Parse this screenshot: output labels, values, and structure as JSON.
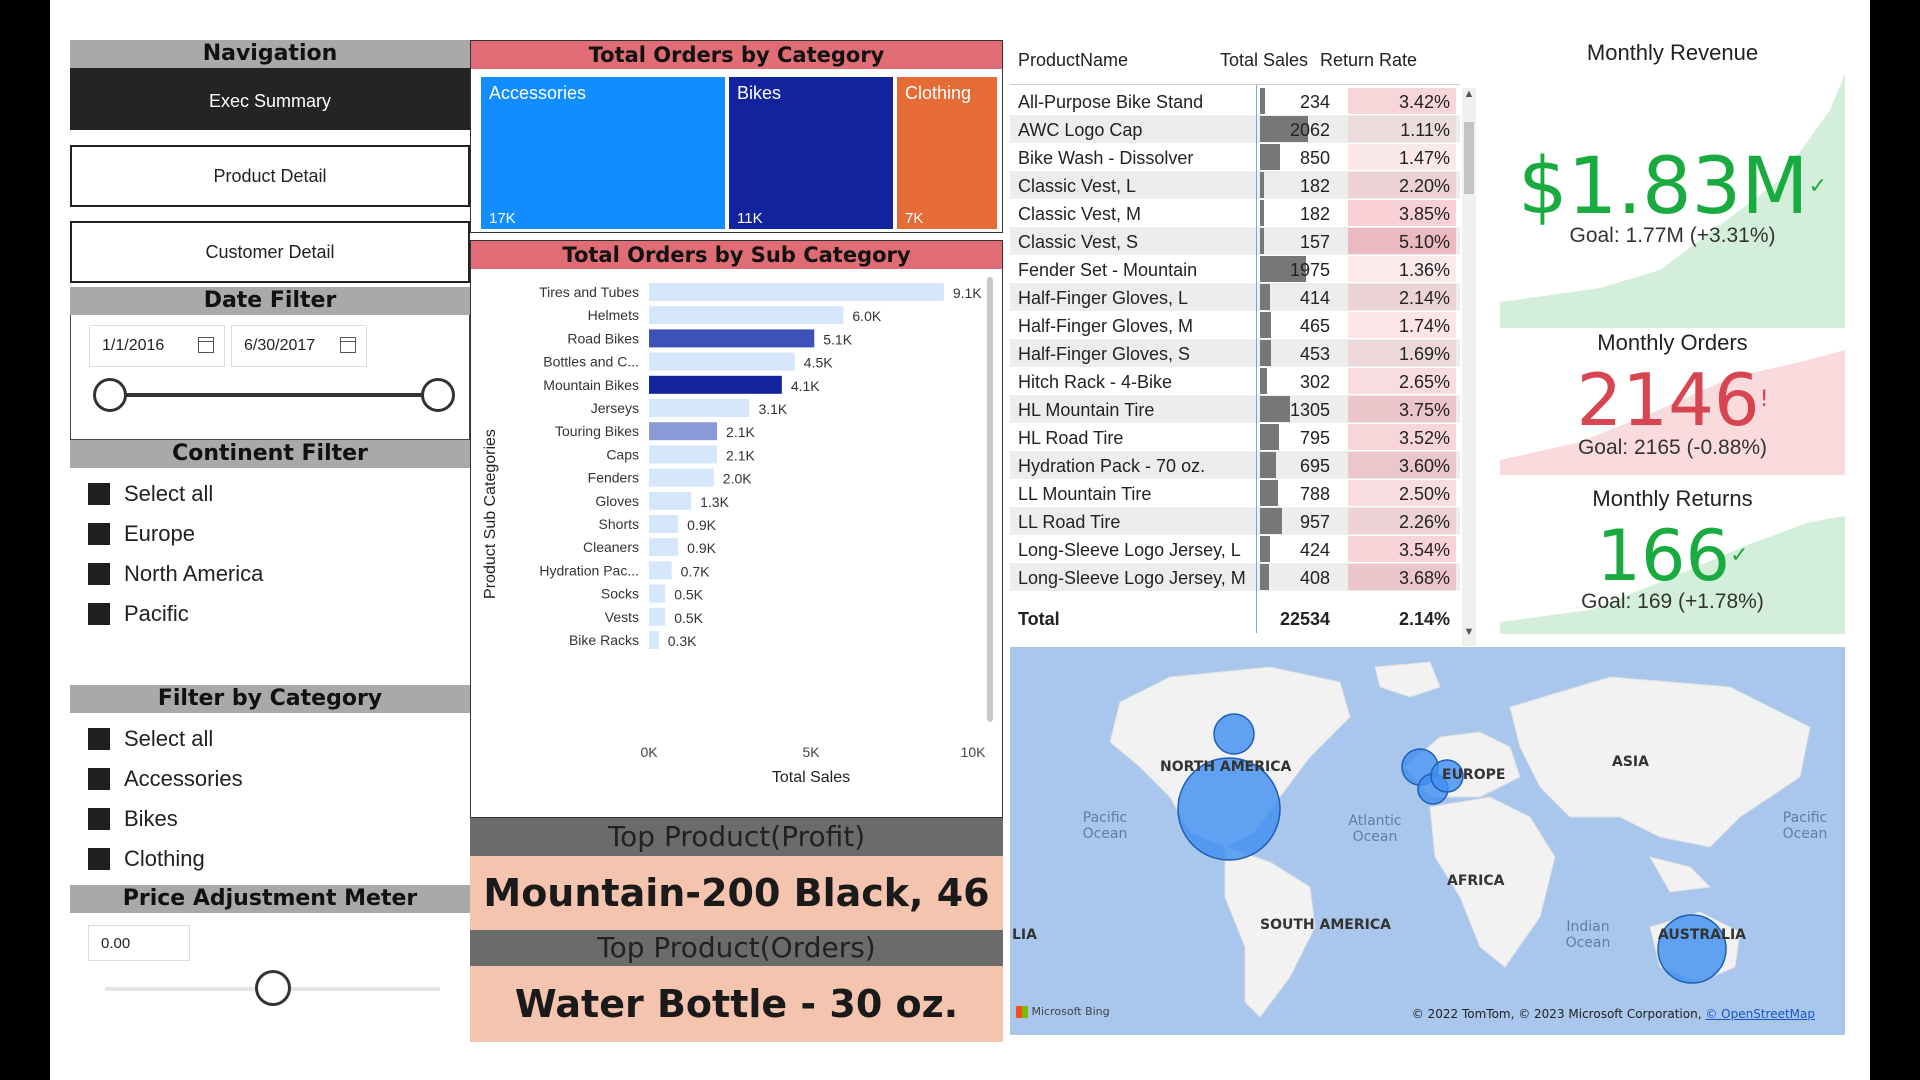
{
  "navigation": {
    "title": "Navigation",
    "buttons": [
      {
        "label": "Exec Summary"
      },
      {
        "label": "Product Detail"
      },
      {
        "label": "Customer Detail"
      }
    ]
  },
  "date_filter": {
    "title": "Date Filter",
    "start": "1/1/2016",
    "end": "6/30/2017"
  },
  "continent_filter": {
    "title": "Continent Filter",
    "items": [
      "Select all",
      "Europe",
      "North America",
      "Pacific"
    ]
  },
  "category_filter": {
    "title": "Filter by Category",
    "items": [
      "Select all",
      "Accessories",
      "Bikes",
      "Clothing"
    ]
  },
  "price_meter": {
    "title": "Price Adjustment Meter",
    "value": "0.00",
    "slider_position": 0.5
  },
  "treemap": {
    "title": "Total Orders by Category",
    "items": [
      {
        "label": "Accessories",
        "value": "17K",
        "color": "#118dff"
      },
      {
        "label": "Bikes",
        "value": "11K",
        "color": "#12239e"
      },
      {
        "label": "Clothing",
        "value": "7K",
        "color": "#e66c37"
      }
    ]
  },
  "chart_data": {
    "type": "bar",
    "orientation": "horizontal",
    "title": "Total Orders by Sub Category",
    "xlabel": "Total Sales",
    "ylabel": "Product Sub Categories",
    "xlim": [
      0,
      10000
    ],
    "xticks": [
      "0K",
      "5K",
      "10K"
    ],
    "categories": [
      "Tires and Tubes",
      "Helmets",
      "Road Bikes",
      "Bottles and C...",
      "Mountain Bikes",
      "Jerseys",
      "Touring Bikes",
      "Caps",
      "Fenders",
      "Gloves",
      "Shorts",
      "Cleaners",
      "Hydration Pac...",
      "Socks",
      "Vests",
      "Bike Racks"
    ],
    "values": [
      9100,
      6000,
      5100,
      4500,
      4100,
      3100,
      2100,
      2100,
      2000,
      1300,
      900,
      900,
      700,
      500,
      500,
      300
    ],
    "labels": [
      "9.1K",
      "6.0K",
      "5.1K",
      "4.5K",
      "4.1K",
      "3.1K",
      "2.1K",
      "2.1K",
      "2.0K",
      "1.3K",
      "0.9K",
      "0.9K",
      "0.7K",
      "0.5K",
      "0.5K",
      "0.3K"
    ],
    "colors": [
      "#d6e6fb",
      "#d6e6fb",
      "#3d52b8",
      "#d6e6fb",
      "#12239e",
      "#d6e6fb",
      "#8a9ad6",
      "#d6e6fb",
      "#d6e6fb",
      "#d6e6fb",
      "#d6e6fb",
      "#d6e6fb",
      "#d6e6fb",
      "#d6e6fb",
      "#d6e6fb",
      "#d6e6fb"
    ]
  },
  "top_profit": {
    "banner": "Top Product(Profit)",
    "value": "Mountain-200 Black, 46"
  },
  "top_orders": {
    "banner": "Top Product(Orders)",
    "value": "Water Bottle - 30 oz."
  },
  "table": {
    "columns": [
      "ProductName",
      "Total Sales",
      "Return Rate"
    ],
    "rows": [
      {
        "name": "All-Purpose Bike Stand",
        "sales": "234",
        "sales_num": 234,
        "rate": "3.42%",
        "rate_num": 3.42
      },
      {
        "name": "AWC Logo Cap",
        "sales": "2062",
        "sales_num": 2062,
        "rate": "1.11%",
        "rate_num": 1.11
      },
      {
        "name": "Bike Wash - Dissolver",
        "sales": "850",
        "sales_num": 850,
        "rate": "1.47%",
        "rate_num": 1.47
      },
      {
        "name": "Classic Vest, L",
        "sales": "182",
        "sales_num": 182,
        "rate": "2.20%",
        "rate_num": 2.2
      },
      {
        "name": "Classic Vest, M",
        "sales": "182",
        "sales_num": 182,
        "rate": "3.85%",
        "rate_num": 3.85
      },
      {
        "name": "Classic Vest, S",
        "sales": "157",
        "sales_num": 157,
        "rate": "5.10%",
        "rate_num": 5.1
      },
      {
        "name": "Fender Set - Mountain",
        "sales": "1975",
        "sales_num": 1975,
        "rate": "1.36%",
        "rate_num": 1.36
      },
      {
        "name": "Half-Finger Gloves, L",
        "sales": "414",
        "sales_num": 414,
        "rate": "2.14%",
        "rate_num": 2.14
      },
      {
        "name": "Half-Finger Gloves, M",
        "sales": "465",
        "sales_num": 465,
        "rate": "1.74%",
        "rate_num": 1.74
      },
      {
        "name": "Half-Finger Gloves, S",
        "sales": "453",
        "sales_num": 453,
        "rate": "1.69%",
        "rate_num": 1.69
      },
      {
        "name": "Hitch Rack - 4-Bike",
        "sales": "302",
        "sales_num": 302,
        "rate": "2.65%",
        "rate_num": 2.65
      },
      {
        "name": "HL Mountain Tire",
        "sales": "1305",
        "sales_num": 1305,
        "rate": "3.75%",
        "rate_num": 3.75
      },
      {
        "name": "HL Road Tire",
        "sales": "795",
        "sales_num": 795,
        "rate": "3.52%",
        "rate_num": 3.52
      },
      {
        "name": "Hydration Pack - 70 oz.",
        "sales": "695",
        "sales_num": 695,
        "rate": "3.60%",
        "rate_num": 3.6
      },
      {
        "name": "LL Mountain Tire",
        "sales": "788",
        "sales_num": 788,
        "rate": "2.50%",
        "rate_num": 2.5
      },
      {
        "name": "LL Road Tire",
        "sales": "957",
        "sales_num": 957,
        "rate": "2.26%",
        "rate_num": 2.26
      },
      {
        "name": "Long-Sleeve Logo Jersey, L",
        "sales": "424",
        "sales_num": 424,
        "rate": "3.54%",
        "rate_num": 3.54
      },
      {
        "name": "Long-Sleeve Logo Jersey, M",
        "sales": "408",
        "sales_num": 408,
        "rate": "3.68%",
        "rate_num": 3.68
      }
    ],
    "total": {
      "label": "Total",
      "sales": "22534",
      "rate": "2.14%"
    }
  },
  "kpis": {
    "revenue": {
      "title": "Monthly Revenue",
      "value": "$1.83M",
      "mark": "✓",
      "goal": "Goal: 1.77M (+3.31%)",
      "color": "#1aab40"
    },
    "orders": {
      "title": "Monthly Orders",
      "value": "2146",
      "mark": "!",
      "goal": "Goal: 2165 (-0.88%)",
      "color": "#d64550"
    },
    "returns": {
      "title": "Monthly Returns",
      "value": "166",
      "mark": "✓",
      "goal": "Goal: 169 (+1.78%)",
      "color": "#1aab40"
    }
  },
  "map": {
    "labels": {
      "na": "NORTH AMERICA",
      "eu": "EUROPE",
      "asia": "ASIA",
      "africa": "AFRICA",
      "sa": "SOUTH AMERICA",
      "aus": "AUSTRALIA",
      "lia": "LIA",
      "pac_l": "Pacific Ocean",
      "atl": "Atlantic Ocean",
      "ind": "Indian Ocean",
      "pac_r": "Pacific Ocean"
    },
    "bing": "Microsoft Bing",
    "copyright": "© 2022 TomTom, © 2023 Microsoft Corporation,",
    "osm": "© OpenStreetMap"
  }
}
